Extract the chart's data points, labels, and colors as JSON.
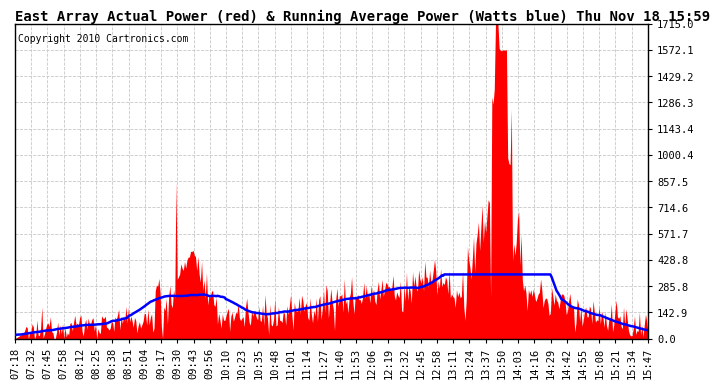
{
  "title": "East Array Actual Power (red) & Running Average Power (Watts blue) Thu Nov 18 15:59",
  "copyright": "Copyright 2010 Cartronics.com",
  "yticks": [
    0.0,
    142.9,
    285.8,
    428.8,
    571.7,
    714.6,
    857.5,
    1000.4,
    1143.4,
    1286.3,
    1429.2,
    1572.1,
    1715.0
  ],
  "ymax": 1715.0,
  "xtick_labels": [
    "07:18",
    "07:32",
    "07:45",
    "07:58",
    "08:12",
    "08:25",
    "08:38",
    "08:51",
    "09:04",
    "09:17",
    "09:30",
    "09:43",
    "09:56",
    "10:10",
    "10:23",
    "10:35",
    "10:48",
    "11:01",
    "11:14",
    "11:27",
    "11:40",
    "11:53",
    "12:06",
    "12:19",
    "12:32",
    "12:45",
    "12:58",
    "13:11",
    "13:24",
    "13:37",
    "13:50",
    "14:03",
    "14:16",
    "14:29",
    "14:42",
    "14:55",
    "15:08",
    "15:21",
    "15:34",
    "15:47"
  ],
  "bg_color": "#ffffff",
  "grid_color": "#c8c8c8",
  "red_color": "#ff0000",
  "blue_color": "#0000ff",
  "title_fontsize": 10,
  "copyright_fontsize": 7,
  "tick_fontsize": 7.5
}
